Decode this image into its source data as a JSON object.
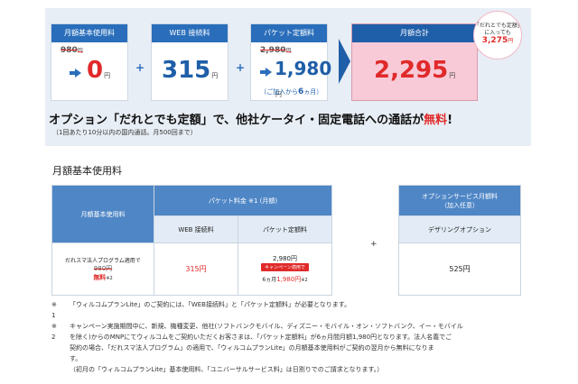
{
  "summary": {
    "basic": {
      "header": "月額基本使用料",
      "old": "980",
      "old_unit": "円",
      "value": "0",
      "unit": "円"
    },
    "web": {
      "header": "WEB 接続料",
      "value": "315",
      "unit": "円"
    },
    "packet": {
      "header": "パケット定額料",
      "old": "2,980",
      "old_unit": "円",
      "value": "1,980",
      "unit": "円",
      "note_pre": "（ご加入から",
      "note_num": "6",
      "note_post": "ヵ月）"
    },
    "total": {
      "header": "月額合計",
      "value": "2,295",
      "unit": "円"
    },
    "badge": {
      "line1": "「だれとでも定額」",
      "line2": "に入っても",
      "value": "3,275",
      "unit": "円"
    },
    "plus": "+",
    "headline": {
      "pre": "オプション「だれとでも定額」で、他社ケータイ・固定電話への通話が",
      "highlight": "無料",
      "post": "!"
    },
    "headline_note": "（1回あたり10分以内の国内通話。月500回まで）"
  },
  "section_title": "月額基本使用料",
  "fee_table": {
    "col_basic": "月額基本使用料",
    "col_packet_group": "パケット料金 ※1 (月額)",
    "col_web": "WEB 接続料",
    "col_packet": "パケット定額料",
    "row_label": "だれスマ法人プログラム適用で",
    "basic_old": "980円",
    "basic_new": "無料",
    "basic_note": "※2",
    "web": "315円",
    "packet_base": "2,980円",
    "packet_campaign": "キャンペーン適用で",
    "packet_pre": "6ヵ月",
    "packet_value": "1,980円",
    "packet_note": "※2"
  },
  "plus_between": "+",
  "option_table": {
    "col_group": "オプションサービス月額料",
    "col_group_sub": "（加入任意）",
    "col_tether": "デザリングオプション",
    "value": "525円"
  },
  "notes": [
    {
      "mark": "※",
      "text": "「ウィルコムプランLite」のご契約には、「WEB接続料」と「パケット定額料」が必要となります。"
    },
    {
      "mark": "1",
      "text": ""
    },
    {
      "mark": "※",
      "text": "キャンペーン実施期間中に、新規、機種変更、他社(ソフトバンクモバイル、ディズニー・モバイル・オン・ソフトバンク、イー・モバイル"
    },
    {
      "mark": "2",
      "text": "を除く)からのMNPにてウィルコムをご契約いただくお客さまは、「パケット定額料」が6ヵ月間月額1,980円となります。法人名義でご"
    },
    {
      "mark": "",
      "text": "契約の場合、「だれスマ法人プログラム」の適用で、「ウィルコムプランLite」の月額基本使用料がご契約の翌月から無料になりま"
    },
    {
      "mark": "",
      "text": "す。"
    },
    {
      "mark": "",
      "text": "（初月の「ウィルコムプランLite」基本使用料、「ユニバーサルサービス料」は日割りでのご請求となります。）"
    }
  ]
}
